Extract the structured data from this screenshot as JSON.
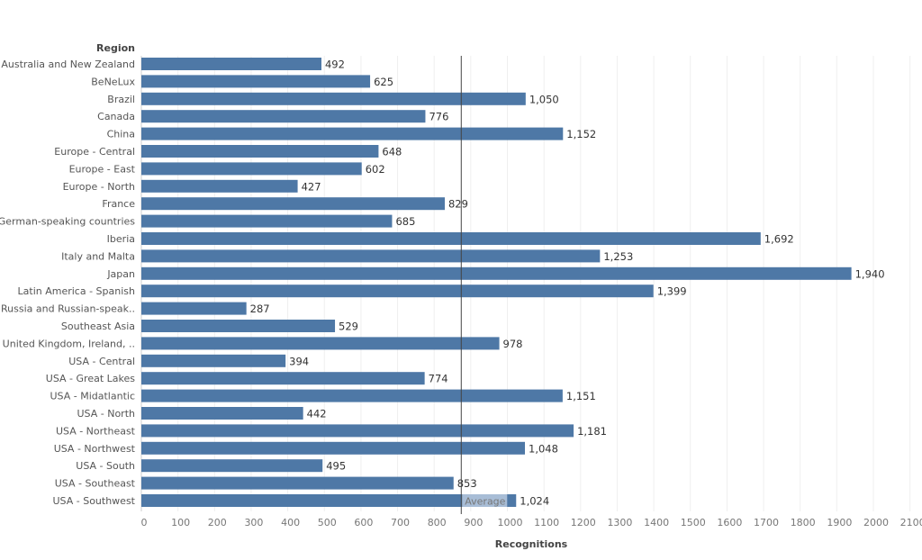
{
  "chart_data": {
    "type": "bar",
    "orientation": "horizontal",
    "row_header": "Region",
    "xlabel": "Recognitions",
    "xlim": [
      0,
      2100
    ],
    "xticks": [
      0,
      100,
      200,
      300,
      400,
      500,
      600,
      700,
      800,
      900,
      1000,
      1100,
      1200,
      1300,
      1400,
      1500,
      1600,
      1700,
      1800,
      1900,
      2000,
      2100
    ],
    "grid": true,
    "bar_color": "#4e78a6",
    "categories": [
      "Australia and New Zealand",
      "BeNeLux",
      "Brazil",
      "Canada",
      "China",
      "Europe - Central",
      "Europe - East",
      "Europe - North",
      "France",
      "German-speaking countries",
      "Iberia",
      "Italy and Malta",
      "Japan",
      "Latin America - Spanish",
      "Russia and Russian-speak..",
      "Southeast Asia",
      "United Kingdom, Ireland, ..",
      "USA - Central",
      "USA - Great Lakes",
      "USA - Midatlantic",
      "USA - North",
      "USA - Northeast",
      "USA - Northwest",
      "USA - South",
      "USA - Southeast",
      "USA - Southwest"
    ],
    "values": [
      492,
      625,
      1050,
      776,
      1152,
      648,
      602,
      427,
      829,
      685,
      1692,
      1253,
      1940,
      1399,
      287,
      529,
      978,
      394,
      774,
      1151,
      442,
      1181,
      1048,
      495,
      853,
      1024
    ],
    "value_labels": [
      "492",
      "625",
      "1,050",
      "776",
      "1,152",
      "648",
      "602",
      "427",
      "829",
      "685",
      "1,692",
      "1,253",
      "1,940",
      "1,399",
      "287",
      "529",
      "978",
      "394",
      "774",
      "1,151",
      "442",
      "1,181",
      "1,048",
      "495",
      "853",
      "1,024"
    ],
    "reference_line": {
      "label": "Average",
      "value": 874
    }
  }
}
